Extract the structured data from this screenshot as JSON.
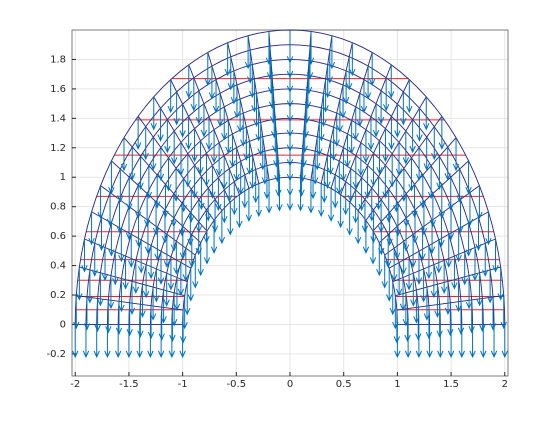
{
  "chart_data": {
    "type": "quiver-mesh",
    "xlim": [
      -2.03,
      2.03
    ],
    "ylim": [
      -0.35,
      2.0
    ],
    "xticks": [
      -2,
      -1.5,
      -1,
      -0.5,
      0,
      0.5,
      1,
      1.5,
      2
    ],
    "yticks": [
      -0.2,
      0,
      0.2,
      0.4,
      0.6,
      0.8,
      1,
      1.2,
      1.4,
      1.6,
      1.8
    ],
    "grid": true,
    "mesh": {
      "radii": [
        1,
        1.1,
        1.2,
        1.3,
        1.4,
        1.5,
        1.6,
        1.7,
        1.8,
        1.9,
        2
      ],
      "spokes": 32,
      "color": "#26267f"
    },
    "arrows": {
      "dy": -0.22,
      "color": "#0072bd"
    },
    "chords": {
      "y": [
        0.1,
        0.19,
        0.3,
        0.44,
        0.63,
        0.87,
        1.15,
        1.39,
        1.67
      ],
      "color": "#e8262a"
    }
  }
}
